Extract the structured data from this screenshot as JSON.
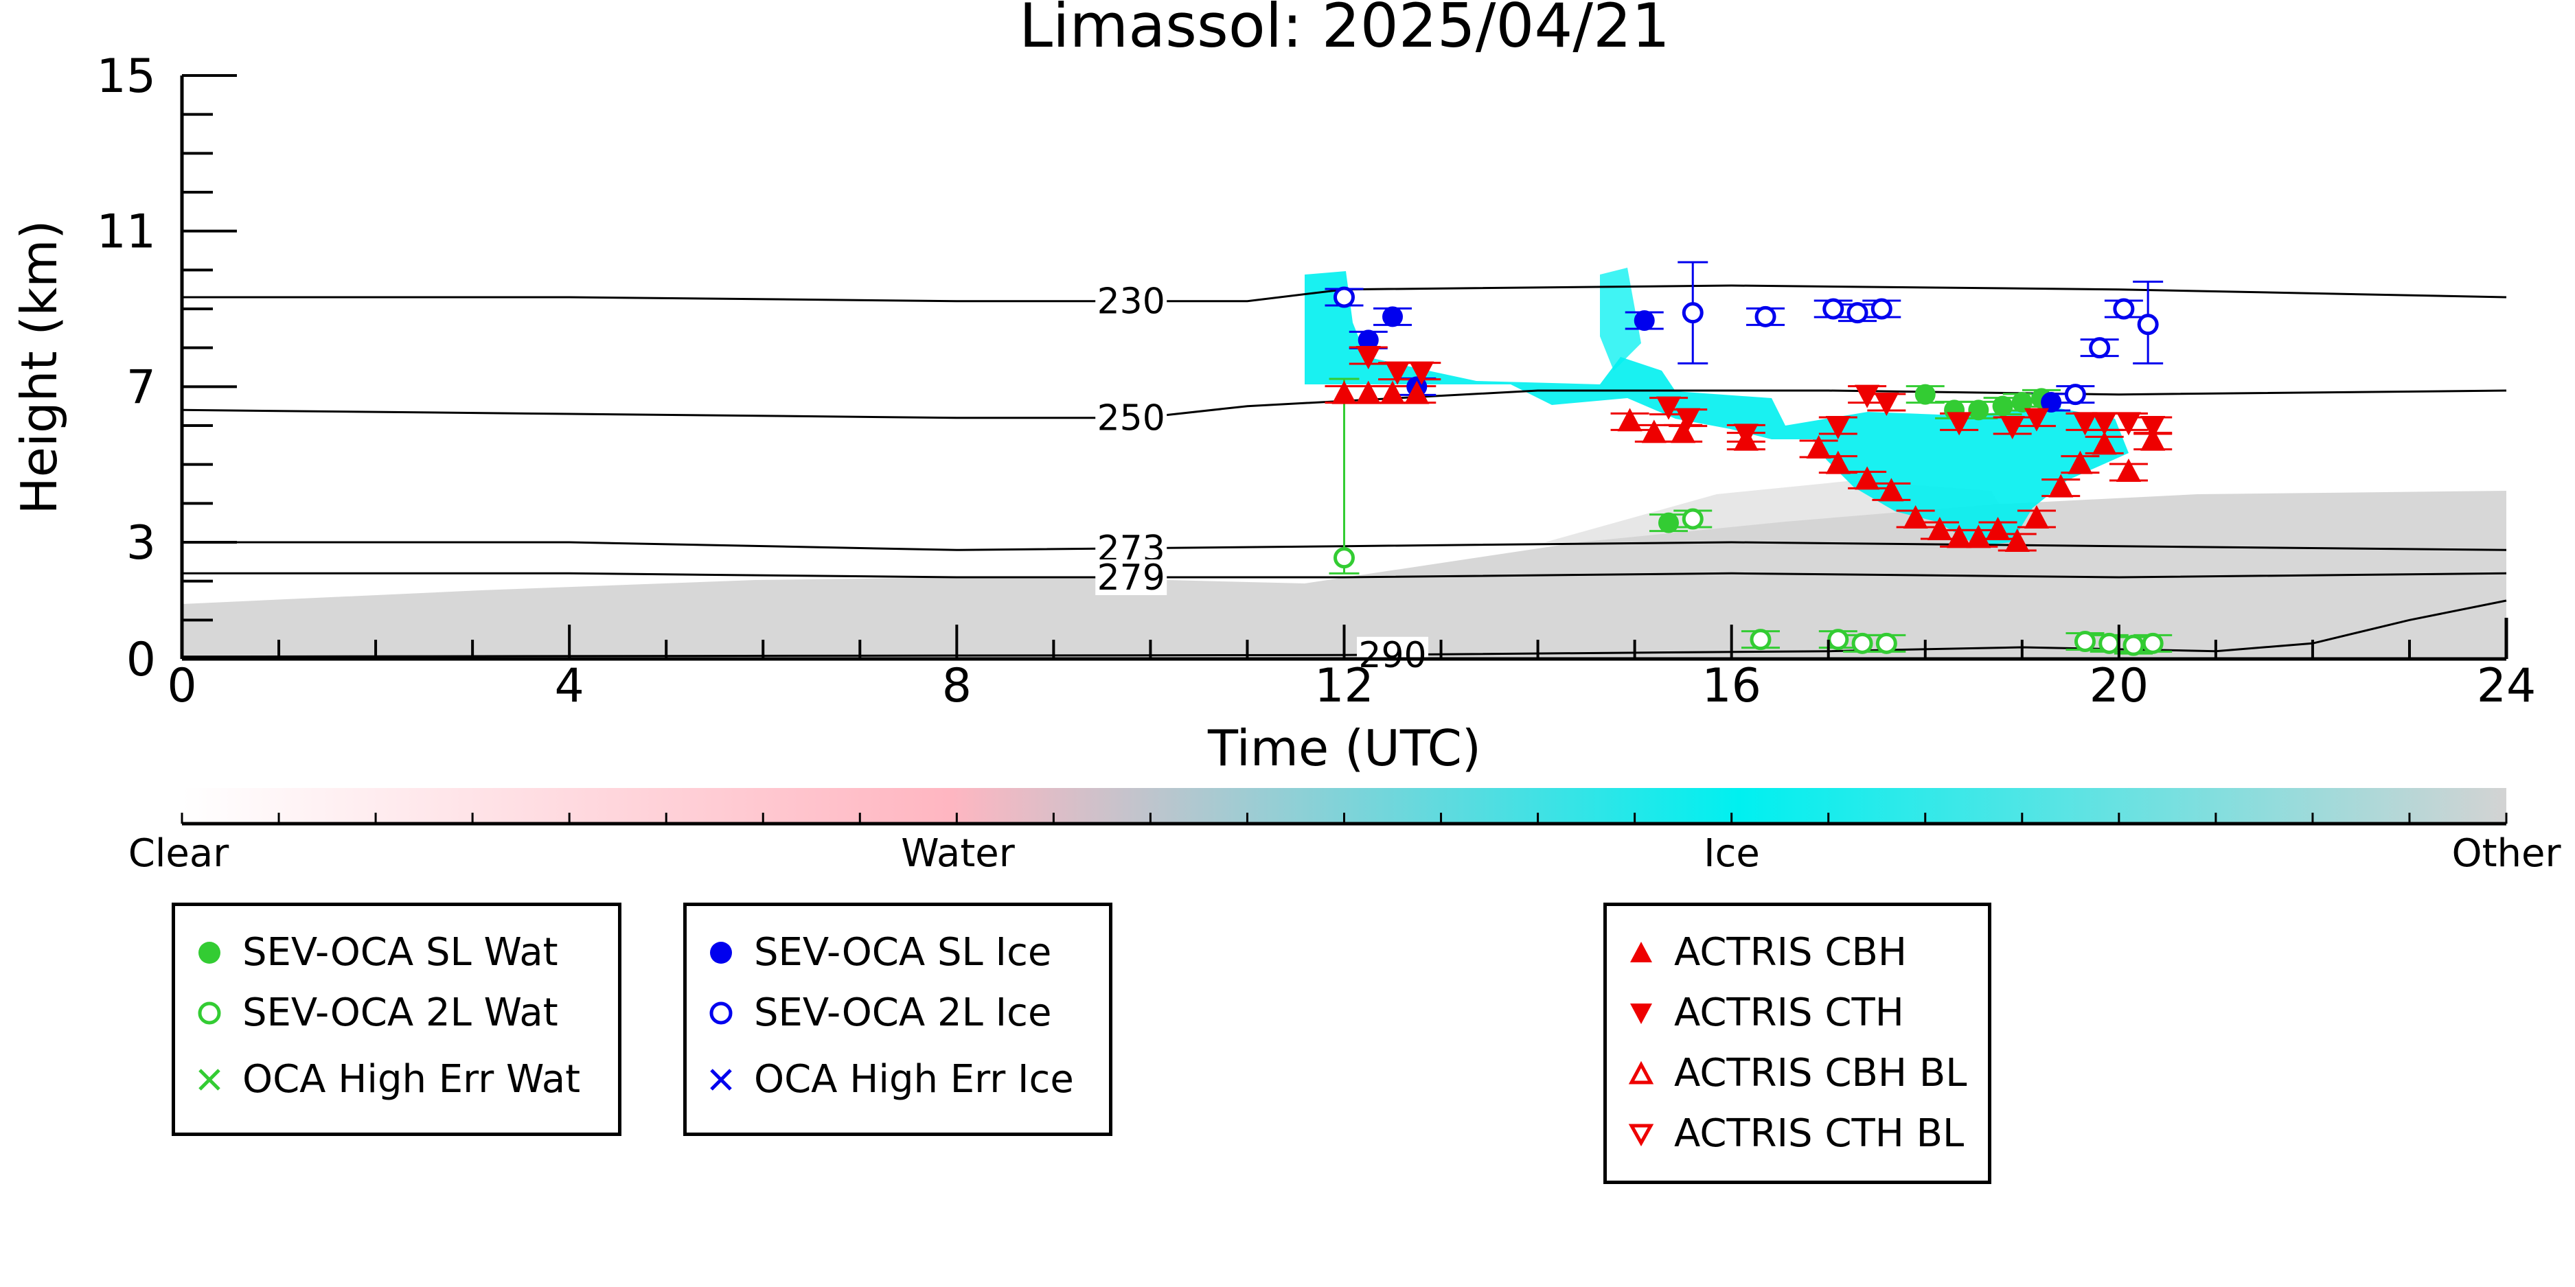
{
  "chart_data": {
    "type": "scatter",
    "title": "Limassol: 2025/04/21",
    "xlabel": "Time (UTC)",
    "ylabel": "Height (km)",
    "xlim": [
      0,
      24
    ],
    "ylim": [
      0,
      15
    ],
    "x_major_ticks": [
      0,
      4,
      8,
      12,
      16,
      20,
      24
    ],
    "x_tick_labels": [
      "0",
      "4",
      "8",
      "12",
      "16",
      "20",
      "24"
    ],
    "y_major_ticks": [
      0,
      3,
      7,
      11,
      15
    ],
    "y_tick_labels": [
      "0",
      "3",
      "7",
      "11",
      "15"
    ],
    "colors": {
      "sev_wat": "#33cc33",
      "sev_ice": "#0000ee",
      "actris": "#ee0000",
      "ice_class": "#00f0f0",
      "other_class": "#d3d3d3",
      "water_class": "#ffb6c1"
    },
    "colorbar": {
      "labels": [
        "Clear",
        "Water",
        "Ice",
        "Other"
      ],
      "stops": [
        "#ffffff",
        "#ffb6c1",
        "#00f0f0",
        "#d3d3d3"
      ]
    },
    "isotherms": [
      {
        "label": "230",
        "label_x": 9.8,
        "points": [
          [
            0,
            9.3
          ],
          [
            4,
            9.3
          ],
          [
            8,
            9.2
          ],
          [
            11,
            9.2
          ],
          [
            12,
            9.5
          ],
          [
            16,
            9.6
          ],
          [
            20,
            9.5
          ],
          [
            24,
            9.3
          ]
        ]
      },
      {
        "label": "250",
        "label_x": 9.8,
        "points": [
          [
            0,
            6.4
          ],
          [
            4,
            6.3
          ],
          [
            8,
            6.2
          ],
          [
            9.9,
            6.2
          ],
          [
            11,
            6.5
          ],
          [
            14,
            6.9
          ],
          [
            17,
            6.9
          ],
          [
            20,
            6.8
          ],
          [
            24,
            6.9
          ]
        ]
      },
      {
        "label": "273",
        "label_x": 9.8,
        "points": [
          [
            0,
            3.0
          ],
          [
            4,
            3.0
          ],
          [
            8,
            2.8
          ],
          [
            12,
            2.9
          ],
          [
            16,
            3.0
          ],
          [
            20,
            2.9
          ],
          [
            24,
            2.8
          ]
        ]
      },
      {
        "label": "279",
        "label_x": 9.8,
        "points": [
          [
            0,
            2.2
          ],
          [
            4,
            2.2
          ],
          [
            8,
            2.1
          ],
          [
            12,
            2.1
          ],
          [
            16,
            2.2
          ],
          [
            20,
            2.1
          ],
          [
            24,
            2.2
          ]
        ]
      },
      {
        "label": "290",
        "label_x": 12.5,
        "points": [
          [
            0,
            0.06
          ],
          [
            12,
            0.1
          ],
          [
            17,
            0.2
          ],
          [
            19,
            0.3
          ],
          [
            21,
            0.2
          ],
          [
            22,
            0.4
          ],
          [
            23,
            1.0
          ],
          [
            24,
            1.5
          ]
        ]
      }
    ],
    "series": [
      {
        "name": "SEV-OCA SL Wat",
        "marker": "filled-circle",
        "color": "#33cc33",
        "points": [
          {
            "x": 15.35,
            "y": 3.5
          },
          {
            "x": 18.0,
            "y": 6.8
          },
          {
            "x": 18.3,
            "y": 6.4
          },
          {
            "x": 18.55,
            "y": 6.4
          },
          {
            "x": 18.8,
            "y": 6.5
          },
          {
            "x": 19.0,
            "y": 6.6
          },
          {
            "x": 19.2,
            "y": 6.7
          }
        ]
      },
      {
        "name": "SEV-OCA 2L Wat",
        "marker": "open-circle",
        "color": "#33cc33",
        "points": [
          {
            "x": 12.0,
            "y": 2.6,
            "err": [
              2.2,
              7.2
            ]
          },
          {
            "x": 15.6,
            "y": 3.6
          },
          {
            "x": 16.3,
            "y": 0.5
          },
          {
            "x": 17.1,
            "y": 0.5
          },
          {
            "x": 17.35,
            "y": 0.4
          },
          {
            "x": 17.6,
            "y": 0.4
          },
          {
            "x": 19.65,
            "y": 0.45
          },
          {
            "x": 19.9,
            "y": 0.4
          },
          {
            "x": 20.15,
            "y": 0.35
          },
          {
            "x": 20.35,
            "y": 0.4
          }
        ]
      },
      {
        "name": "OCA High Err Wat",
        "marker": "x",
        "color": "#33cc33",
        "points": []
      },
      {
        "name": "SEV-OCA SL Ice",
        "marker": "filled-circle",
        "color": "#0000ee",
        "points": [
          {
            "x": 12.25,
            "y": 8.2
          },
          {
            "x": 12.5,
            "y": 8.8
          },
          {
            "x": 12.75,
            "y": 7.0
          },
          {
            "x": 15.1,
            "y": 8.7
          },
          {
            "x": 19.3,
            "y": 6.6
          }
        ]
      },
      {
        "name": "SEV-OCA 2L Ice",
        "marker": "open-circle",
        "color": "#0000ee",
        "points": [
          {
            "x": 12.0,
            "y": 9.3
          },
          {
            "x": 15.6,
            "y": 8.9,
            "err": [
              7.6,
              10.2
            ]
          },
          {
            "x": 16.35,
            "y": 8.8
          },
          {
            "x": 17.05,
            "y": 9.0
          },
          {
            "x": 17.3,
            "y": 8.9
          },
          {
            "x": 17.55,
            "y": 9.0
          },
          {
            "x": 19.55,
            "y": 6.8
          },
          {
            "x": 19.8,
            "y": 8.0
          },
          {
            "x": 20.05,
            "y": 9.0
          },
          {
            "x": 20.3,
            "y": 8.6,
            "err": [
              7.6,
              9.7
            ]
          }
        ]
      },
      {
        "name": "OCA High Err Ice",
        "marker": "x",
        "color": "#0000ee",
        "points": []
      },
      {
        "name": "ACTRIS CBH",
        "marker": "triangle-up",
        "color": "#ee0000",
        "points": [
          {
            "x": 12.0,
            "y": 6.8
          },
          {
            "x": 12.25,
            "y": 6.8
          },
          {
            "x": 12.5,
            "y": 6.8
          },
          {
            "x": 12.75,
            "y": 6.8
          },
          {
            "x": 14.95,
            "y": 6.1
          },
          {
            "x": 15.2,
            "y": 5.8
          },
          {
            "x": 15.5,
            "y": 5.8
          },
          {
            "x": 16.15,
            "y": 5.6
          },
          {
            "x": 16.9,
            "y": 5.4
          },
          {
            "x": 17.1,
            "y": 5.0
          },
          {
            "x": 17.4,
            "y": 4.6
          },
          {
            "x": 17.65,
            "y": 4.3
          },
          {
            "x": 17.9,
            "y": 3.6
          },
          {
            "x": 18.15,
            "y": 3.3
          },
          {
            "x": 18.35,
            "y": 3.1
          },
          {
            "x": 18.55,
            "y": 3.1
          },
          {
            "x": 18.75,
            "y": 3.3
          },
          {
            "x": 18.95,
            "y": 3.0
          },
          {
            "x": 19.15,
            "y": 3.6
          },
          {
            "x": 19.4,
            "y": 4.4
          },
          {
            "x": 19.6,
            "y": 5.0
          },
          {
            "x": 19.85,
            "y": 5.5
          },
          {
            "x": 20.1,
            "y": 4.8
          },
          {
            "x": 20.35,
            "y": 5.6
          }
        ]
      },
      {
        "name": "ACTRIS CTH",
        "marker": "triangle-down",
        "color": "#ee0000",
        "points": [
          {
            "x": 12.25,
            "y": 7.8
          },
          {
            "x": 12.55,
            "y": 7.4
          },
          {
            "x": 12.8,
            "y": 7.4
          },
          {
            "x": 15.35,
            "y": 6.5
          },
          {
            "x": 15.55,
            "y": 6.2
          },
          {
            "x": 16.15,
            "y": 5.8
          },
          {
            "x": 17.1,
            "y": 6.0
          },
          {
            "x": 17.4,
            "y": 6.8
          },
          {
            "x": 17.6,
            "y": 6.6
          },
          {
            "x": 18.35,
            "y": 6.1
          },
          {
            "x": 18.9,
            "y": 6.0
          },
          {
            "x": 19.15,
            "y": 6.2
          },
          {
            "x": 19.65,
            "y": 6.1
          },
          {
            "x": 19.85,
            "y": 6.1
          },
          {
            "x": 20.1,
            "y": 6.1
          },
          {
            "x": 20.35,
            "y": 6.0
          }
        ]
      },
      {
        "name": "ACTRIS CBH BL",
        "marker": "open-triangle-up",
        "color": "#ee0000",
        "points": []
      },
      {
        "name": "ACTRIS CTH BL",
        "marker": "open-triangle-down",
        "color": "#ee0000",
        "points": []
      }
    ],
    "legend_groups": [
      [
        "SEV-OCA SL Wat",
        "SEV-OCA 2L Wat",
        "OCA High Err Wat"
      ],
      [
        "SEV-OCA SL Ice",
        "SEV-OCA 2L Ice",
        "OCA High Err Ice"
      ],
      [
        "ACTRIS CBH",
        "ACTRIS CTH",
        "ACTRIS CBH BL",
        "ACTRIS CTH BL"
      ]
    ],
    "grid": false
  }
}
